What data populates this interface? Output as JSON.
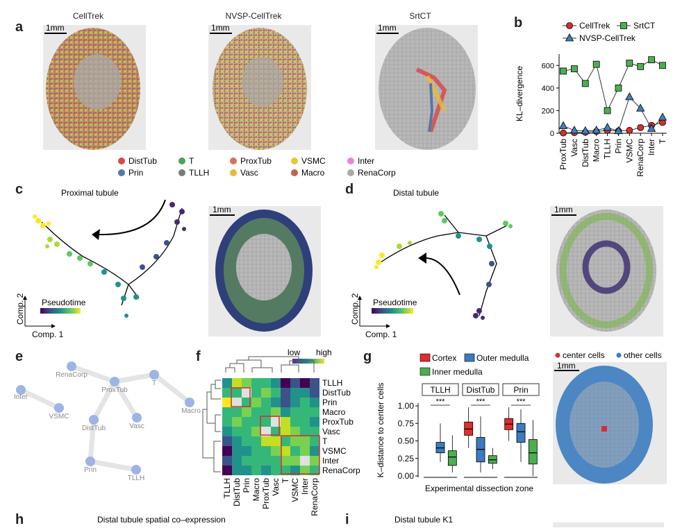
{
  "panel_labels": [
    "a",
    "b",
    "c",
    "d",
    "e",
    "f",
    "g",
    "h",
    "i"
  ],
  "panel_a": {
    "titles": [
      "CellTrek",
      "NVSP-CellTrek",
      "SrtCT"
    ],
    "scalebar": "1mm",
    "legend": [
      {
        "name": "DistTub",
        "color": "#d84a4a"
      },
      {
        "name": "T",
        "color": "#4ea05a"
      },
      {
        "name": "ProxTub",
        "color": "#d4735a"
      },
      {
        "name": "VSMC",
        "color": "#e6c73a"
      },
      {
        "name": "Inter",
        "color": "#e58ad0"
      },
      {
        "name": "Prin",
        "color": "#5577a8"
      },
      {
        "name": "TLLH",
        "color": "#7a7a7a"
      },
      {
        "name": "Vasc",
        "color": "#e9b93a"
      },
      {
        "name": "Macro",
        "color": "#c2634a"
      },
      {
        "name": "RenaCorp",
        "color": "#a8a8a8"
      }
    ]
  },
  "chart_data": {
    "type": "line",
    "categories": [
      "ProxTub",
      "Vasc",
      "DistTub",
      "Macro",
      "TLLH",
      "Prin",
      "VSMC",
      "RenaCorp",
      "Inter",
      "T"
    ],
    "series": [
      {
        "name": "CellTrek",
        "color": "#d32f2f",
        "marker": "circle",
        "values": [
          2,
          5,
          8,
          15,
          25,
          20,
          25,
          50,
          70,
          95
        ]
      },
      {
        "name": "SrtCT",
        "color": "#4caf50",
        "marker": "square",
        "values": [
          550,
          570,
          440,
          610,
          200,
          400,
          620,
          590,
          650,
          600
        ]
      },
      {
        "name": "NVSP-CellTrek",
        "color": "#3f7fc4",
        "marker": "triangle",
        "values": [
          65,
          25,
          20,
          25,
          50,
          20,
          320,
          220,
          40,
          140
        ]
      }
    ],
    "ylabel": "KL–divergence",
    "yticks": [
      0,
      200,
      400,
      600
    ],
    "ylim": [
      0,
      700
    ]
  },
  "panel_c": {
    "title": "Proximal tubule",
    "colorbar_label": "Pseudotime",
    "axis1": "Comp. 1",
    "axis2": "Comp. 2",
    "scalebar": "1mm"
  },
  "panel_d": {
    "title": "Distal tubule",
    "colorbar_label": "Pseudotime",
    "axis1": "Comp. 1",
    "axis2": "Comp. 2",
    "scalebar": "1mm"
  },
  "panel_e": {
    "nodes": [
      "RenaCorp",
      "Inter",
      "ProxTub",
      "T",
      "VSMC",
      "Macro",
      "DistTub",
      "Vasc",
      "Prin",
      "TLLH"
    ]
  },
  "panel_f": {
    "colorbar_low": "low",
    "colorbar_high": "high",
    "rows": [
      "TLLH",
      "DistTub",
      "Prin",
      "Macro",
      "ProxTub",
      "Vasc",
      "T",
      "VSMC",
      "Inter",
      "RenaCorp"
    ],
    "cols": [
      "TLLH",
      "DistTub",
      "Prin",
      "Macro",
      "ProxTub",
      "Vasc",
      "T",
      "VSMC",
      "Inter",
      "RenaCorp"
    ]
  },
  "panel_g": {
    "legend": [
      {
        "name": "Cortex",
        "color": "#e02d2d"
      },
      {
        "name": "Outer medulla",
        "color": "#3b7bbf"
      },
      {
        "name": "Inner medulla",
        "color": "#4caf50"
      }
    ],
    "facets": [
      "TLLH",
      "DistTub",
      "Prin"
    ],
    "sig": "***",
    "ylabel": "K–distance to center cells",
    "xlabel": "Experimental dissection zone",
    "yticks": [
      "0.00",
      "0.25",
      "0.50",
      "0.75",
      "1.00"
    ],
    "boxes": [
      {
        "facet": "TLLH",
        "group": "Outer medulla",
        "q1": 0.33,
        "median": 0.4,
        "q3": 0.48,
        "lo": 0.2,
        "hi": 0.75
      },
      {
        "facet": "TLLH",
        "group": "Inner medulla",
        "q1": 0.15,
        "median": 0.27,
        "q3": 0.36,
        "lo": 0.05,
        "hi": 0.58
      },
      {
        "facet": "DistTub",
        "group": "Cortex",
        "q1": 0.58,
        "median": 0.67,
        "q3": 0.77,
        "lo": 0.4,
        "hi": 0.98
      },
      {
        "facet": "DistTub",
        "group": "Outer medulla",
        "q1": 0.2,
        "median": 0.38,
        "q3": 0.55,
        "lo": 0.05,
        "hi": 0.85
      },
      {
        "facet": "DistTub",
        "group": "Inner medulla",
        "q1": 0.18,
        "median": 0.23,
        "q3": 0.29,
        "lo": 0.1,
        "hi": 0.4
      },
      {
        "facet": "Prin",
        "group": "Cortex",
        "q1": 0.66,
        "median": 0.74,
        "q3": 0.82,
        "lo": 0.5,
        "hi": 0.98
      },
      {
        "facet": "Prin",
        "group": "Outer medulla",
        "q1": 0.48,
        "median": 0.63,
        "q3": 0.75,
        "lo": 0.2,
        "hi": 0.95
      },
      {
        "facet": "Prin",
        "group": "Inner medulla",
        "q1": 0.17,
        "median": 0.33,
        "q3": 0.52,
        "lo": 0.0,
        "hi": 0.8
      }
    ],
    "spatial_legend": [
      {
        "name": "center cells",
        "color": "#d32f2f"
      },
      {
        "name": "other cells",
        "color": "#3b7bbf"
      }
    ],
    "scalebar": "1mm"
  },
  "panel_h": {
    "title": "Distal tubule spatial co–expression"
  },
  "panel_i": {
    "title": "Distal tubule K1"
  }
}
